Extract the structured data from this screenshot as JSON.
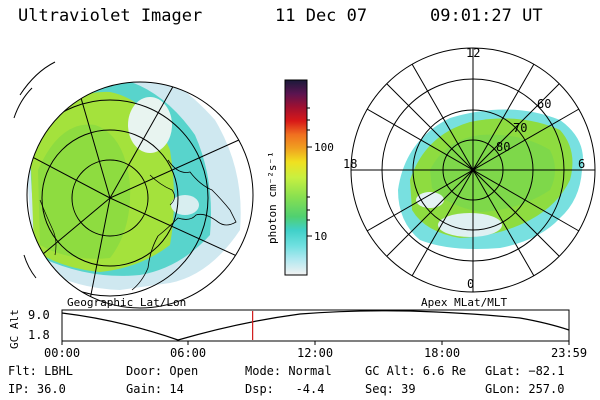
{
  "header": {
    "instrument": "Ultraviolet Imager",
    "date": "11 Dec 07",
    "time": "09:01:27 UT"
  },
  "left_map": {
    "label": "Geographic Lat/Lon"
  },
  "right_map": {
    "label": "Apex MLat/MLT",
    "mlt_labels": [
      "12",
      "18",
      "6",
      "0"
    ],
    "lat_labels": [
      "60",
      "70",
      "80"
    ]
  },
  "colorbar": {
    "unit_label": "photon cm⁻²s⁻¹",
    "tick_labels": [
      "100",
      "10"
    ],
    "colors": [
      "#1a1a3a",
      "#5a1450",
      "#a01030",
      "#d81818",
      "#f03010",
      "#f07020",
      "#f0a020",
      "#f0e020",
      "#c8f040",
      "#88e050",
      "#50d070",
      "#40d0c8",
      "#70e0e0",
      "#b0e8f0",
      "#e0eef4",
      "#f2f2f2"
    ]
  },
  "altitude_plot": {
    "axis_label": "GC Alt",
    "y_max": "9.0",
    "y_min": "1.8",
    "time_ticks": [
      "00:00",
      "06:00",
      "12:00",
      "18:00",
      "23:59"
    ],
    "current_time_fraction": 0.376
  },
  "info": {
    "flt": "Flt: LBHL",
    "ip": "IP: 36.0",
    "door": "Door: Open",
    "gain": "Gain: 14",
    "mode": "Mode: Normal",
    "dsp": "Dsp:   -4.4",
    "gc_alt": "GC Alt: 6.6 Re",
    "seq": "Seq: 39",
    "glat": "GLat: −82.1",
    "glon": "GLon: 257.0"
  }
}
